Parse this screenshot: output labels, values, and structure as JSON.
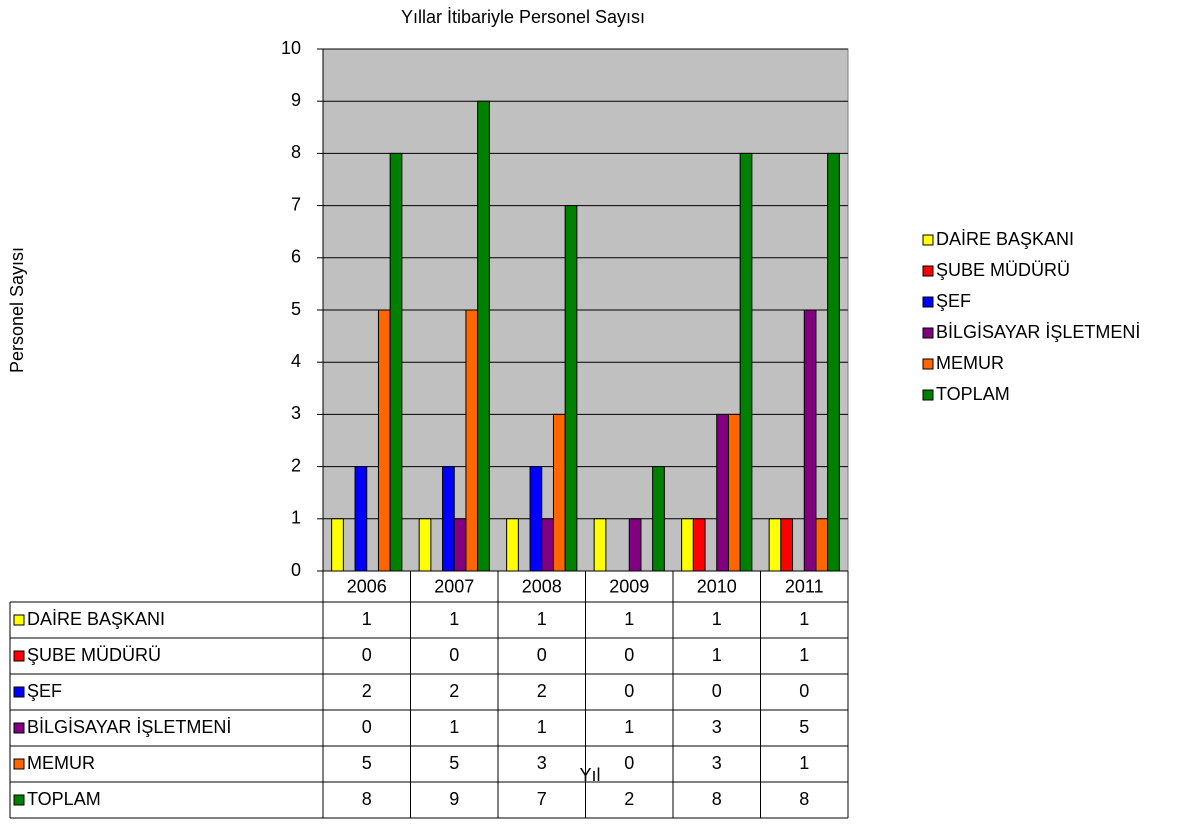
{
  "chart_data": {
    "type": "bar",
    "title": "Yıllar İtibariyle Personel Sayısı",
    "x_label": "Yıl",
    "y_label": "Personel Sayısı",
    "categories": [
      "2006",
      "2007",
      "2008",
      "2009",
      "2010",
      "2011"
    ],
    "series": [
      {
        "name": "DAİRE BAŞKANI",
        "color": "#ffff00",
        "values": [
          1,
          1,
          1,
          1,
          1,
          1
        ]
      },
      {
        "name": "ŞUBE MÜDÜRÜ",
        "color": "#ff0000",
        "values": [
          0,
          0,
          0,
          0,
          1,
          1
        ]
      },
      {
        "name": "ŞEF",
        "color": "#0000ff",
        "values": [
          2,
          2,
          2,
          0,
          0,
          0
        ]
      },
      {
        "name": "BİLGİSAYAR İŞLETMENİ",
        "color": "#800080",
        "values": [
          0,
          1,
          1,
          1,
          3,
          5
        ]
      },
      {
        "name": "MEMUR",
        "color": "#ff6600",
        "values": [
          5,
          5,
          3,
          0,
          3,
          1
        ]
      },
      {
        "name": "TOPLAM",
        "color": "#008000",
        "values": [
          8,
          9,
          7,
          2,
          8,
          8
        ]
      }
    ],
    "ylim": [
      0,
      10
    ],
    "yticks": [
      0,
      1,
      2,
      3,
      4,
      5,
      6,
      7,
      8,
      9,
      10
    ],
    "grid": true,
    "plot_background": "#c0c0c0",
    "legend": "right",
    "data_table": true
  }
}
